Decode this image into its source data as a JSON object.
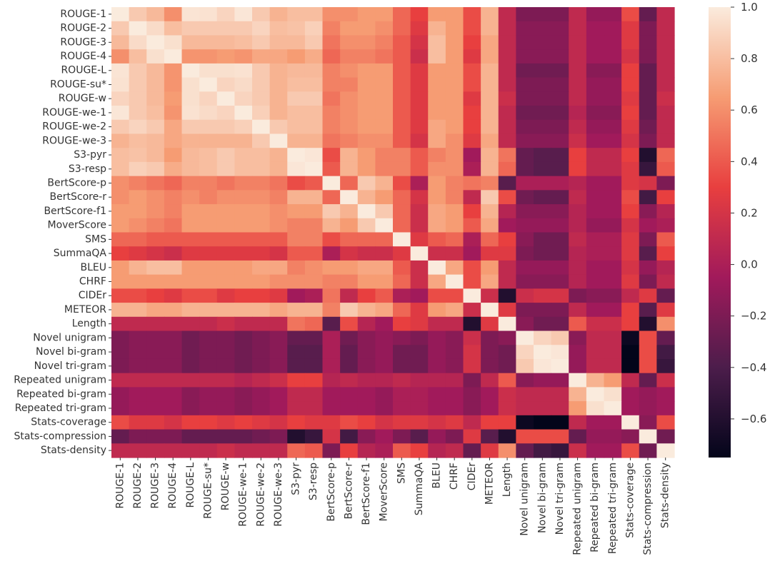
{
  "chart_data": {
    "type": "heatmap",
    "labels": [
      "ROUGE-1",
      "ROUGE-2",
      "ROUGE-3",
      "ROUGE-4",
      "ROUGE-L",
      "ROUGE-su*",
      "ROUGE-w",
      "ROUGE-we-1",
      "ROUGE-we-2",
      "ROUGE-we-3",
      "S3-pyr",
      "S3-resp",
      "BertScore-p",
      "BertScore-r",
      "BertScore-f1",
      "MoverScore",
      "SMS",
      "SummaQA",
      "BLEU",
      "CHRF",
      "CIDEr",
      "METEOR",
      "Length",
      "Novel unigram",
      "Novel bi-gram",
      "Novel tri-gram",
      "Repeated unigram",
      "Repeated bi-gram",
      "Repeated tri-gram",
      "Stats-coverage",
      "Stats-compression",
      "Stats-density"
    ],
    "matrix": [
      [
        1.0,
        0.85,
        0.78,
        0.6,
        0.97,
        0.96,
        0.9,
        0.98,
        0.85,
        0.75,
        0.8,
        0.8,
        0.6,
        0.6,
        0.65,
        0.65,
        0.45,
        0.3,
        0.65,
        0.65,
        0.35,
        0.75,
        0.1,
        -0.2,
        -0.2,
        -0.2,
        0.1,
        -0.1,
        -0.1,
        0.35,
        -0.3,
        0.1
      ],
      [
        0.85,
        1.0,
        0.93,
        0.8,
        0.85,
        0.85,
        0.85,
        0.85,
        0.9,
        0.8,
        0.82,
        0.88,
        0.55,
        0.65,
        0.65,
        0.6,
        0.45,
        0.25,
        0.75,
        0.65,
        0.35,
        0.75,
        0.1,
        -0.15,
        -0.15,
        -0.15,
        0.1,
        -0.05,
        -0.05,
        0.25,
        -0.2,
        0.1
      ],
      [
        0.78,
        0.93,
        1.0,
        0.95,
        0.78,
        0.78,
        0.78,
        0.8,
        0.85,
        0.78,
        0.78,
        0.85,
        0.5,
        0.6,
        0.6,
        0.55,
        0.4,
        0.2,
        0.8,
        0.65,
        0.3,
        0.7,
        0.1,
        -0.15,
        -0.15,
        -0.15,
        0.1,
        -0.05,
        -0.05,
        0.25,
        -0.2,
        0.1
      ],
      [
        0.6,
        0.8,
        0.95,
        1.0,
        0.62,
        0.62,
        0.65,
        0.62,
        0.7,
        0.7,
        0.65,
        0.72,
        0.45,
        0.55,
        0.55,
        0.5,
        0.4,
        0.15,
        0.8,
        0.65,
        0.25,
        0.7,
        0.1,
        -0.15,
        -0.15,
        -0.15,
        0.1,
        -0.05,
        -0.05,
        0.2,
        -0.2,
        0.1
      ],
      [
        0.97,
        0.85,
        0.78,
        0.62,
        1.0,
        0.95,
        0.95,
        0.96,
        0.85,
        0.75,
        0.78,
        0.78,
        0.55,
        0.6,
        0.65,
        0.65,
        0.4,
        0.25,
        0.65,
        0.65,
        0.35,
        0.75,
        0.1,
        -0.25,
        -0.25,
        -0.25,
        0.1,
        -0.15,
        -0.15,
        0.3,
        -0.3,
        0.1
      ],
      [
        0.96,
        0.85,
        0.78,
        0.62,
        0.95,
        1.0,
        0.9,
        0.93,
        0.85,
        0.75,
        0.8,
        0.8,
        0.55,
        0.55,
        0.65,
        0.65,
        0.4,
        0.25,
        0.65,
        0.65,
        0.35,
        0.75,
        0.1,
        -0.2,
        -0.2,
        -0.2,
        0.1,
        -0.1,
        -0.1,
        0.3,
        -0.3,
        0.1
      ],
      [
        0.9,
        0.85,
        0.78,
        0.65,
        0.95,
        0.9,
        1.0,
        0.9,
        0.85,
        0.75,
        0.85,
        0.85,
        0.5,
        0.6,
        0.65,
        0.65,
        0.4,
        0.25,
        0.65,
        0.65,
        0.25,
        0.75,
        0.15,
        -0.2,
        -0.2,
        -0.2,
        0.1,
        -0.1,
        -0.1,
        0.25,
        -0.3,
        0.15
      ],
      [
        0.98,
        0.85,
        0.8,
        0.62,
        0.96,
        0.93,
        0.9,
        1.0,
        0.88,
        0.75,
        0.8,
        0.8,
        0.55,
        0.6,
        0.65,
        0.65,
        0.4,
        0.25,
        0.65,
        0.65,
        0.3,
        0.75,
        0.1,
        -0.25,
        -0.25,
        -0.25,
        0.05,
        -0.15,
        -0.15,
        0.3,
        -0.3,
        0.1
      ],
      [
        0.85,
        0.9,
        0.85,
        0.7,
        0.85,
        0.85,
        0.85,
        0.88,
        1.0,
        0.85,
        0.8,
        0.8,
        0.55,
        0.6,
        0.65,
        0.65,
        0.4,
        0.25,
        0.7,
        0.65,
        0.3,
        0.75,
        0.1,
        -0.2,
        -0.2,
        -0.2,
        0.1,
        -0.1,
        -0.1,
        0.25,
        -0.25,
        0.1
      ],
      [
        0.75,
        0.8,
        0.78,
        0.7,
        0.75,
        0.75,
        0.75,
        0.75,
        0.85,
        1.0,
        0.75,
        0.75,
        0.5,
        0.55,
        0.6,
        0.6,
        0.4,
        0.2,
        0.7,
        0.6,
        0.25,
        0.7,
        0.1,
        -0.15,
        -0.15,
        -0.15,
        0.15,
        -0.05,
        -0.05,
        0.2,
        -0.2,
        0.1
      ],
      [
        0.8,
        0.82,
        0.78,
        0.65,
        0.78,
        0.8,
        0.85,
        0.8,
        0.8,
        0.75,
        1.0,
        0.98,
        0.35,
        0.75,
        0.65,
        0.55,
        0.55,
        0.4,
        0.55,
        0.6,
        -0.05,
        0.75,
        0.5,
        -0.3,
        -0.35,
        -0.35,
        0.3,
        0.1,
        0.1,
        0.3,
        -0.6,
        0.45
      ],
      [
        0.8,
        0.88,
        0.85,
        0.72,
        0.78,
        0.8,
        0.85,
        0.8,
        0.8,
        0.75,
        0.98,
        1.0,
        0.4,
        0.75,
        0.65,
        0.55,
        0.55,
        0.4,
        0.6,
        0.6,
        0.0,
        0.75,
        0.45,
        -0.3,
        -0.35,
        -0.35,
        0.3,
        0.1,
        0.1,
        0.25,
        -0.5,
        0.4
      ],
      [
        0.6,
        0.55,
        0.5,
        0.45,
        0.55,
        0.55,
        0.5,
        0.55,
        0.55,
        0.5,
        0.35,
        0.4,
        1.0,
        0.45,
        0.85,
        0.75,
        0.35,
        0.0,
        0.65,
        0.55,
        0.5,
        0.55,
        -0.35,
        0.0,
        0.0,
        0.0,
        0.05,
        -0.05,
        -0.05,
        0.25,
        0.2,
        -0.2
      ],
      [
        0.6,
        0.65,
        0.6,
        0.55,
        0.6,
        0.55,
        0.6,
        0.6,
        0.6,
        0.55,
        0.75,
        0.75,
        0.45,
        1.0,
        0.75,
        0.65,
        0.45,
        0.2,
        0.65,
        0.55,
        0.1,
        0.85,
        0.35,
        -0.25,
        -0.3,
        -0.3,
        0.1,
        -0.05,
        -0.05,
        0.35,
        -0.45,
        0.3
      ],
      [
        0.65,
        0.65,
        0.6,
        0.55,
        0.65,
        0.65,
        0.65,
        0.65,
        0.65,
        0.6,
        0.65,
        0.65,
        0.85,
        0.75,
        1.0,
        0.85,
        0.45,
        0.15,
        0.7,
        0.65,
        0.3,
        0.75,
        0.05,
        -0.15,
        -0.15,
        -0.15,
        0.05,
        -0.05,
        -0.05,
        0.3,
        -0.15,
        0.05
      ],
      [
        0.65,
        0.6,
        0.55,
        0.5,
        0.65,
        0.65,
        0.65,
        0.65,
        0.65,
        0.6,
        0.55,
        0.55,
        0.75,
        0.65,
        0.85,
        1.0,
        0.45,
        0.15,
        0.7,
        0.65,
        0.4,
        0.7,
        -0.05,
        -0.1,
        -0.1,
        -0.1,
        0.05,
        -0.1,
        -0.1,
        0.2,
        -0.05,
        0.0
      ],
      [
        0.45,
        0.45,
        0.4,
        0.4,
        0.4,
        0.4,
        0.4,
        0.4,
        0.4,
        0.4,
        0.55,
        0.55,
        0.35,
        0.45,
        0.45,
        0.45,
        1.0,
        0.25,
        0.4,
        0.45,
        0.0,
        0.45,
        0.3,
        -0.15,
        -0.25,
        -0.25,
        0.1,
        0.0,
        0.0,
        0.25,
        -0.2,
        0.4
      ],
      [
        0.3,
        0.25,
        0.2,
        0.15,
        0.25,
        0.25,
        0.25,
        0.25,
        0.25,
        0.2,
        0.4,
        0.4,
        0.0,
        0.2,
        0.15,
        0.15,
        0.25,
        1.0,
        0.15,
        0.15,
        -0.05,
        0.25,
        0.25,
        -0.2,
        -0.25,
        -0.25,
        0.05,
        0.0,
        0.0,
        0.25,
        -0.35,
        0.3
      ],
      [
        0.65,
        0.75,
        0.8,
        0.8,
        0.65,
        0.65,
        0.65,
        0.65,
        0.7,
        0.7,
        0.55,
        0.6,
        0.65,
        0.65,
        0.7,
        0.7,
        0.4,
        0.15,
        1.0,
        0.7,
        0.35,
        0.65,
        0.1,
        -0.1,
        -0.1,
        -0.1,
        0.05,
        -0.05,
        -0.05,
        0.2,
        -0.1,
        0.05
      ],
      [
        0.65,
        0.65,
        0.65,
        0.65,
        0.65,
        0.65,
        0.65,
        0.65,
        0.65,
        0.6,
        0.6,
        0.6,
        0.55,
        0.55,
        0.65,
        0.65,
        0.45,
        0.15,
        0.7,
        1.0,
        0.35,
        0.7,
        0.1,
        -0.15,
        -0.15,
        -0.15,
        0.05,
        -0.05,
        -0.05,
        0.25,
        -0.2,
        0.1
      ],
      [
        0.35,
        0.35,
        0.3,
        0.25,
        0.35,
        0.35,
        0.25,
        0.3,
        0.3,
        0.25,
        -0.05,
        0.0,
        0.5,
        0.1,
        0.3,
        0.4,
        0.0,
        -0.05,
        0.35,
        0.35,
        1.0,
        0.15,
        -0.6,
        0.15,
        0.2,
        0.2,
        -0.2,
        -0.15,
        -0.15,
        0.1,
        0.25,
        -0.3
      ],
      [
        0.75,
        0.75,
        0.7,
        0.7,
        0.75,
        0.75,
        0.75,
        0.75,
        0.75,
        0.7,
        0.75,
        0.75,
        0.55,
        0.85,
        0.75,
        0.7,
        0.45,
        0.25,
        0.65,
        0.7,
        0.15,
        1.0,
        0.25,
        -0.2,
        -0.2,
        -0.2,
        0.1,
        -0.05,
        -0.05,
        0.3,
        -0.35,
        0.25
      ],
      [
        0.1,
        0.1,
        0.1,
        0.1,
        0.1,
        0.1,
        0.15,
        0.1,
        0.1,
        0.1,
        0.5,
        0.45,
        -0.35,
        0.35,
        0.05,
        -0.05,
        0.3,
        0.25,
        0.1,
        0.1,
        -0.6,
        0.25,
        1.0,
        -0.15,
        -0.25,
        -0.25,
        0.4,
        0.15,
        0.15,
        0.3,
        -0.6,
        0.6
      ],
      [
        -0.2,
        -0.15,
        -0.15,
        -0.15,
        -0.25,
        -0.2,
        -0.2,
        -0.25,
        -0.2,
        -0.15,
        -0.3,
        -0.3,
        0.0,
        -0.25,
        -0.15,
        -0.1,
        -0.15,
        -0.2,
        -0.1,
        -0.15,
        0.15,
        -0.2,
        -0.15,
        1.0,
        0.9,
        0.85,
        -0.15,
        0.1,
        0.1,
        -0.7,
        0.35,
        -0.3
      ],
      [
        -0.2,
        -0.15,
        -0.15,
        -0.15,
        -0.25,
        -0.2,
        -0.2,
        -0.25,
        -0.2,
        -0.15,
        -0.35,
        -0.35,
        0.0,
        -0.3,
        -0.15,
        -0.1,
        -0.25,
        -0.25,
        -0.1,
        -0.15,
        0.2,
        -0.2,
        -0.25,
        0.9,
        1.0,
        0.98,
        -0.1,
        0.1,
        0.1,
        -0.75,
        0.35,
        -0.45
      ],
      [
        -0.2,
        -0.15,
        -0.15,
        -0.15,
        -0.25,
        -0.2,
        -0.2,
        -0.25,
        -0.2,
        -0.15,
        -0.35,
        -0.35,
        0.0,
        -0.3,
        -0.15,
        -0.1,
        -0.25,
        -0.25,
        -0.1,
        -0.15,
        0.2,
        -0.2,
        -0.25,
        0.85,
        0.98,
        1.0,
        -0.1,
        0.1,
        0.1,
        -0.75,
        0.35,
        -0.5
      ],
      [
        0.1,
        0.1,
        0.1,
        0.1,
        0.1,
        0.1,
        0.1,
        0.05,
        0.1,
        0.15,
        0.3,
        0.3,
        0.05,
        0.1,
        0.05,
        0.05,
        0.1,
        0.05,
        0.05,
        0.05,
        -0.2,
        0.1,
        0.4,
        -0.15,
        -0.1,
        -0.1,
        1.0,
        0.75,
        0.65,
        0.1,
        -0.3,
        0.15
      ],
      [
        -0.1,
        -0.05,
        -0.05,
        -0.05,
        -0.15,
        -0.1,
        -0.1,
        -0.15,
        -0.1,
        -0.05,
        0.1,
        0.1,
        -0.05,
        -0.05,
        -0.05,
        -0.1,
        0.0,
        0.0,
        -0.05,
        -0.05,
        -0.15,
        -0.05,
        0.15,
        0.1,
        0.1,
        0.1,
        0.75,
        1.0,
        0.95,
        -0.05,
        -0.1,
        -0.05
      ],
      [
        -0.1,
        -0.05,
        -0.05,
        -0.05,
        -0.15,
        -0.1,
        -0.1,
        -0.15,
        -0.1,
        -0.05,
        0.1,
        0.1,
        -0.05,
        -0.05,
        -0.05,
        -0.1,
        0.0,
        0.0,
        -0.05,
        -0.05,
        -0.15,
        -0.05,
        0.15,
        0.1,
        0.1,
        0.1,
        0.65,
        0.95,
        1.0,
        -0.05,
        -0.1,
        -0.05
      ],
      [
        0.35,
        0.25,
        0.25,
        0.2,
        0.3,
        0.3,
        0.25,
        0.3,
        0.25,
        0.2,
        0.3,
        0.25,
        0.25,
        0.35,
        0.3,
        0.2,
        0.25,
        0.25,
        0.2,
        0.25,
        0.1,
        0.3,
        0.3,
        -0.7,
        -0.75,
        -0.75,
        0.1,
        -0.05,
        -0.05,
        1.0,
        -0.15,
        0.35
      ],
      [
        -0.3,
        -0.2,
        -0.2,
        -0.2,
        -0.3,
        -0.3,
        -0.3,
        -0.3,
        -0.25,
        -0.2,
        -0.6,
        -0.5,
        0.2,
        -0.45,
        -0.15,
        -0.05,
        -0.2,
        -0.35,
        -0.1,
        -0.2,
        0.25,
        -0.35,
        -0.6,
        0.35,
        0.35,
        0.35,
        -0.3,
        -0.1,
        -0.1,
        -0.15,
        1.0,
        -0.25
      ],
      [
        0.1,
        0.1,
        0.1,
        0.1,
        0.1,
        0.1,
        0.15,
        0.1,
        0.1,
        0.1,
        0.45,
        0.4,
        -0.2,
        0.3,
        0.05,
        0.0,
        0.4,
        0.3,
        0.05,
        0.1,
        -0.3,
        0.25,
        0.6,
        -0.3,
        -0.45,
        -0.5,
        0.15,
        -0.05,
        -0.05,
        0.35,
        -0.25,
        1.0
      ]
    ],
    "colorbar": {
      "vmin": -0.75,
      "vmax": 1.0,
      "ticks": [
        "1.0",
        "0.8",
        "0.6",
        "0.4",
        "0.2",
        "0.0",
        "−0.2",
        "−0.4",
        "−0.6"
      ],
      "tick_values": [
        1.0,
        0.8,
        0.6,
        0.4,
        0.2,
        0.0,
        -0.2,
        -0.4,
        -0.6
      ],
      "colormap": "rocket",
      "colormap_stops": [
        "#03051a",
        "#4c1d4b",
        "#a11a5b",
        "#e83f3f",
        "#f69c73",
        "#faebdd"
      ]
    },
    "title": "",
    "xlabel": "",
    "ylabel": ""
  }
}
